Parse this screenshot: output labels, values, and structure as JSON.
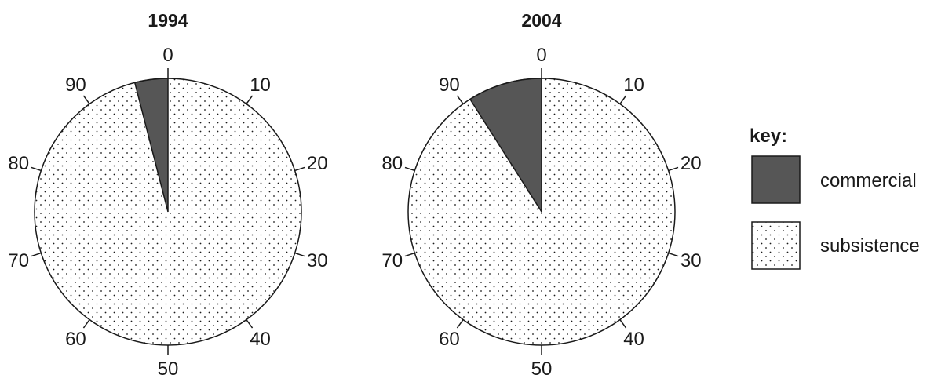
{
  "chart_data": [
    {
      "type": "pie",
      "title": "1994",
      "scale_max": 100,
      "tick_labels": [
        "0",
        "10",
        "20",
        "30",
        "40",
        "50",
        "60",
        "70",
        "80",
        "90"
      ],
      "slices": [
        {
          "name": "commercial",
          "value": 4
        },
        {
          "name": "subsistence",
          "value": 96
        }
      ]
    },
    {
      "type": "pie",
      "title": "2004",
      "scale_max": 100,
      "tick_labels": [
        "0",
        "10",
        "20",
        "30",
        "40",
        "50",
        "60",
        "70",
        "80",
        "90"
      ],
      "slices": [
        {
          "name": "commercial",
          "value": 9
        },
        {
          "name": "subsistence",
          "value": 91
        }
      ]
    }
  ],
  "legend": {
    "title": "key:",
    "placement": "right",
    "items": [
      {
        "label": "commercial",
        "fill": "#565656"
      },
      {
        "label": "subsistence",
        "fill": "dotted"
      }
    ]
  },
  "colors": {
    "commercial": "#565656",
    "outline": "#1a1a1a",
    "background": "#ffffff"
  }
}
